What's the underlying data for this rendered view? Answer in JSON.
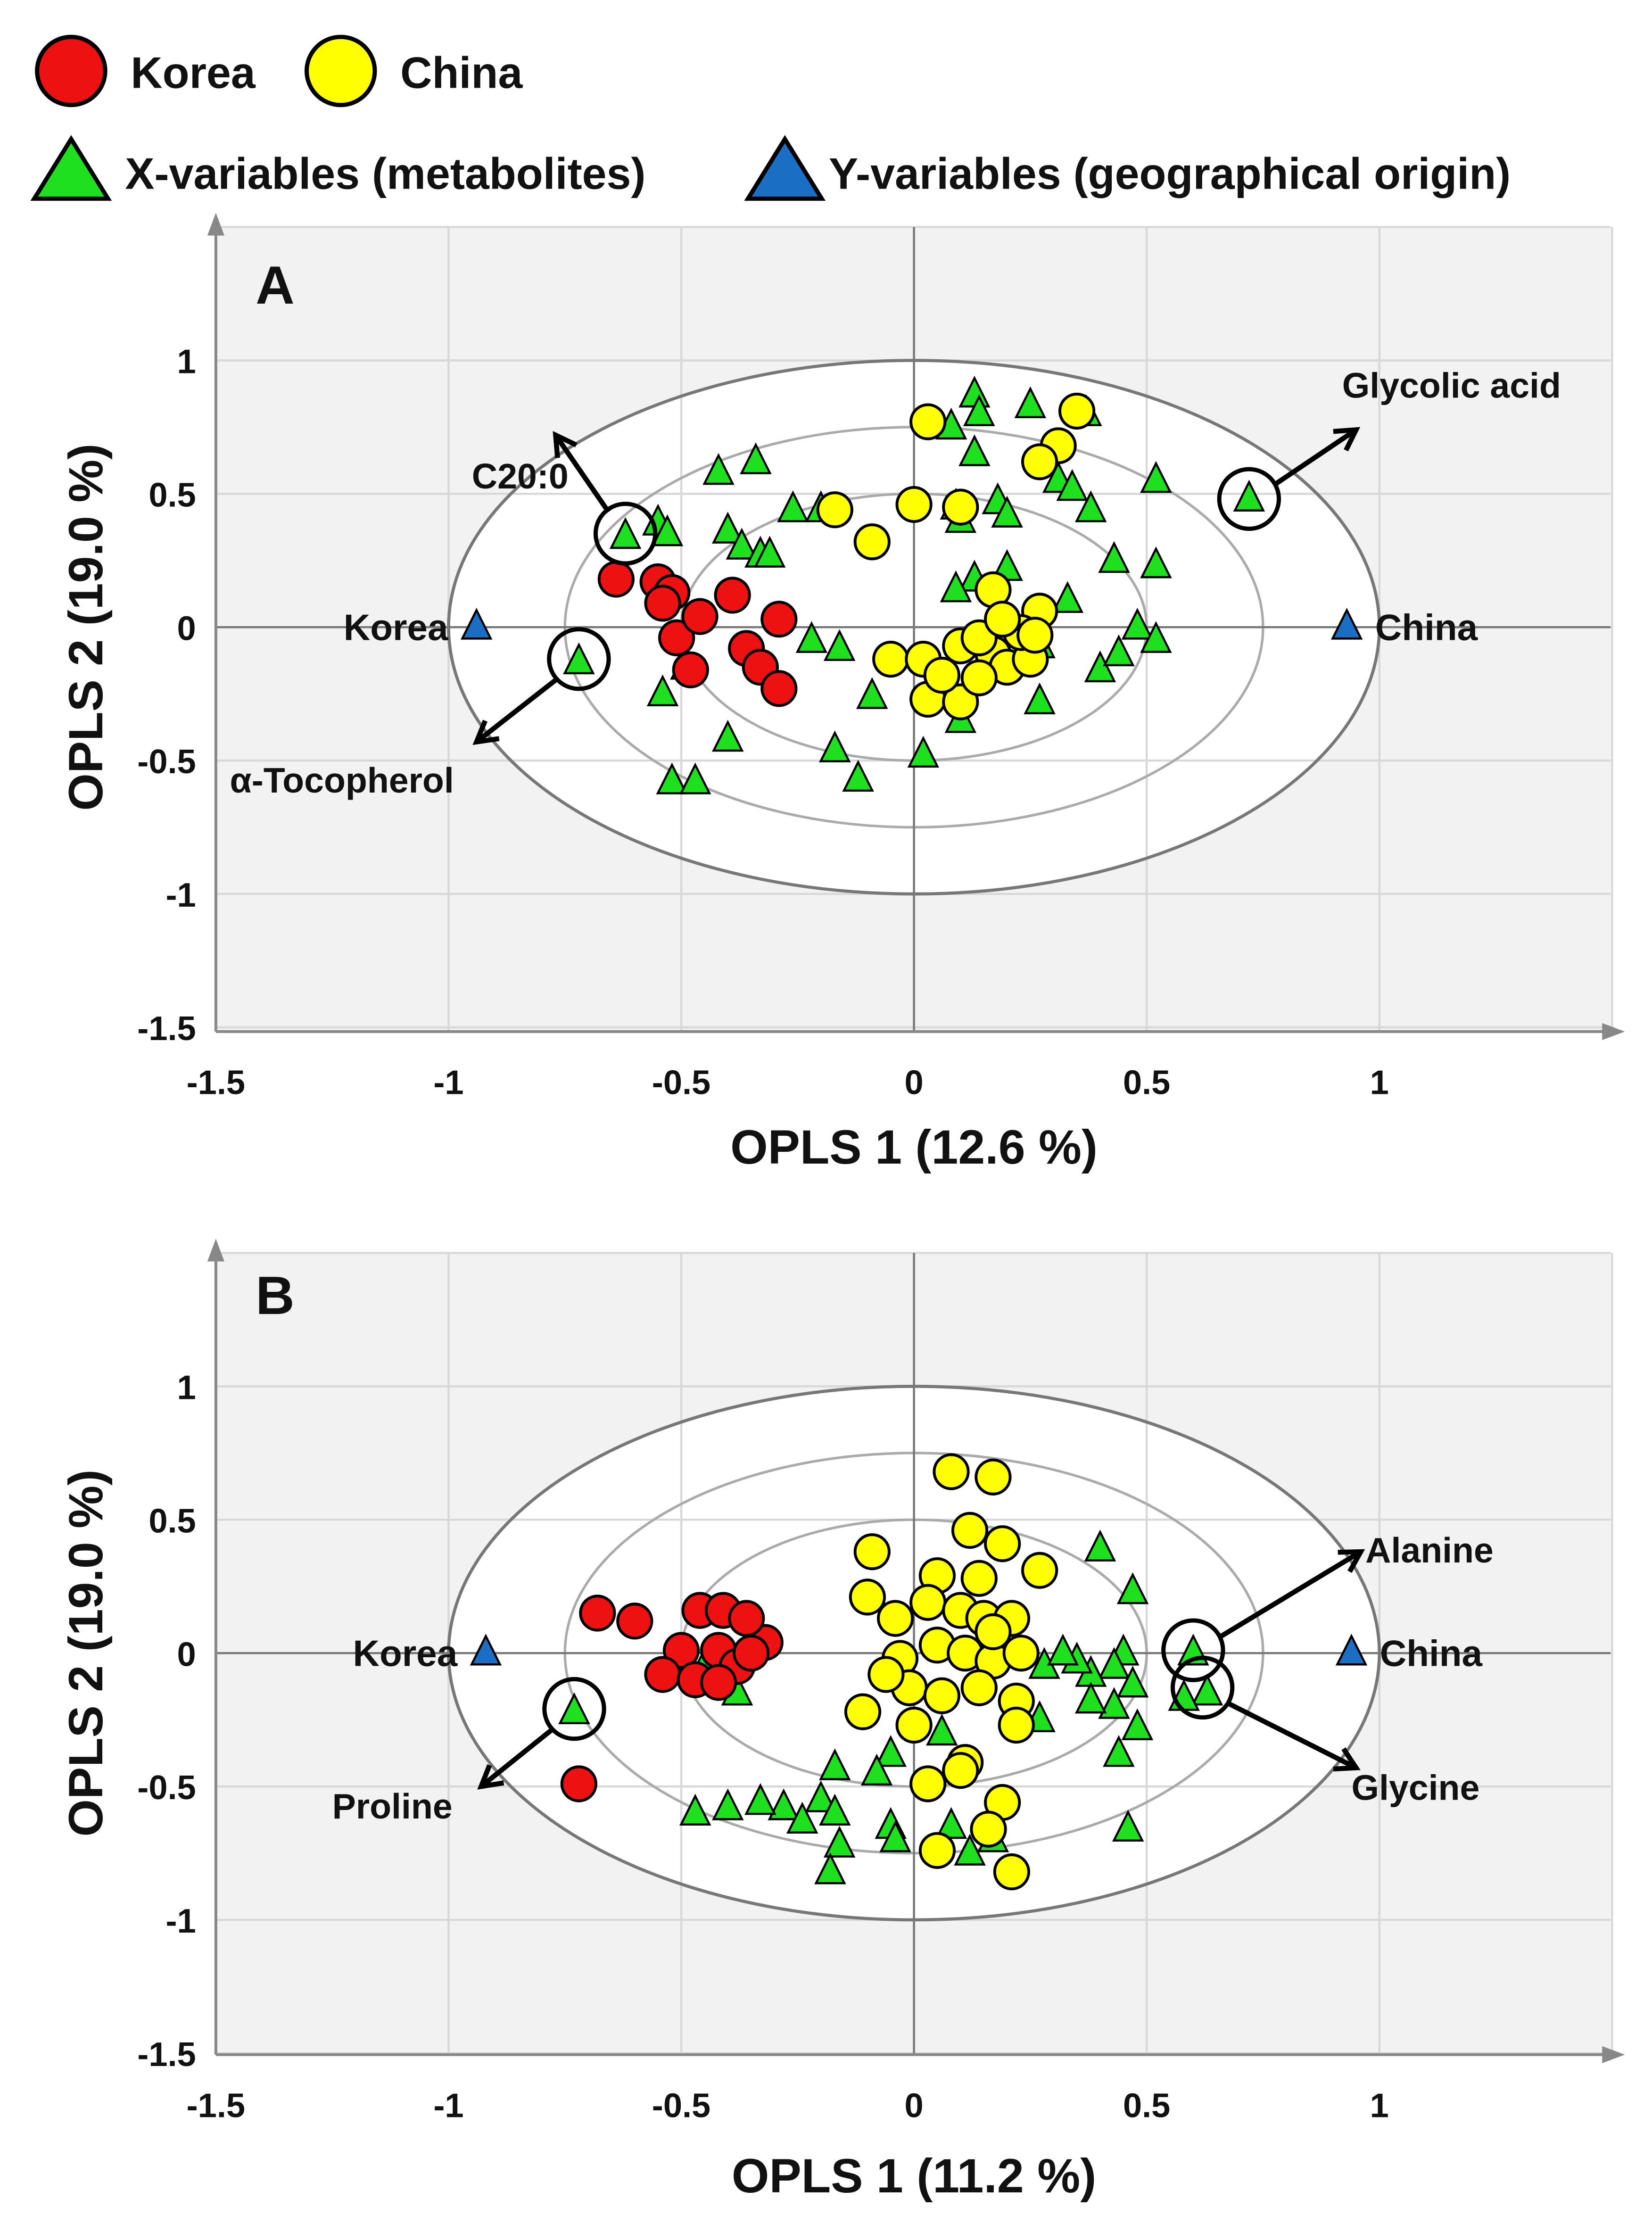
{
  "legend": {
    "korea": "Korea",
    "china": "China",
    "x_variables": "X-variables (metabolites)",
    "y_variables": "Y-variables (geographical origin)"
  },
  "colors": {
    "korea": "#ee1111",
    "china": "#ffff00",
    "x_var": "#1ee01e",
    "y_var": "#1a6fc4",
    "bg": "#f2f2f2",
    "grid": "#d8d8d8"
  },
  "chart_data": [
    {
      "type": "scatter",
      "panel": "A",
      "xlabel": "OPLS 1 (12.6 %)",
      "ylabel": "OPLS 2 (19.0 %)",
      "xlim": [
        -1.5,
        1.5
      ],
      "ylim": [
        -1.5,
        1.5
      ],
      "xticks": [
        "-1.5",
        "-1",
        "-0.5",
        "0",
        "0.5",
        "1"
      ],
      "yticks": [
        "1",
        "0.5",
        "0",
        "-0.5",
        "-1",
        "-1.5"
      ],
      "ellipse_radii": [
        1,
        0.75,
        0.5
      ],
      "series": [
        {
          "name": "Korea",
          "marker": "circle",
          "points": [
            [
              -0.64,
              0.18
            ],
            [
              -0.55,
              0.17
            ],
            [
              -0.52,
              0.13
            ],
            [
              -0.54,
              0.09
            ],
            [
              -0.51,
              -0.04
            ],
            [
              -0.46,
              0.04
            ],
            [
              -0.48,
              -0.16
            ],
            [
              -0.39,
              0.12
            ],
            [
              -0.36,
              -0.08
            ],
            [
              -0.33,
              -0.15
            ],
            [
              -0.29,
              0.03
            ],
            [
              -0.29,
              -0.23
            ]
          ]
        },
        {
          "name": "China",
          "marker": "circle",
          "points": [
            [
              0.03,
              0.77
            ],
            [
              -0.17,
              0.44
            ],
            [
              -0.09,
              0.32
            ],
            [
              0,
              0.46
            ],
            [
              0.1,
              0.45
            ],
            [
              0.35,
              0.81
            ],
            [
              0.31,
              0.68
            ],
            [
              0.27,
              0.62
            ],
            [
              0.17,
              0.14
            ],
            [
              0.27,
              0.06
            ],
            [
              -0.05,
              -0.12
            ],
            [
              0.02,
              -0.12
            ],
            [
              0.03,
              -0.27
            ],
            [
              0.1,
              -0.07
            ],
            [
              0.1,
              -0.28
            ],
            [
              0.17,
              -0.1
            ],
            [
              0.2,
              -0.15
            ],
            [
              0.25,
              -0.12
            ],
            [
              0.23,
              -0.02
            ],
            [
              0.14,
              -0.04
            ],
            [
              0.06,
              -0.18
            ],
            [
              0.26,
              -0.03
            ],
            [
              0.19,
              0.03
            ],
            [
              0.14,
              -0.19
            ]
          ]
        },
        {
          "name": "X-variables (metabolites)",
          "marker": "triangle",
          "points": [
            [
              0.13,
              0.87
            ],
            [
              0.25,
              0.83
            ],
            [
              0.14,
              0.8
            ],
            [
              0.08,
              0.75
            ],
            [
              0.37,
              0.8
            ],
            [
              0.13,
              0.65
            ],
            [
              0.31,
              0.55
            ],
            [
              0.34,
              0.52
            ],
            [
              0.52,
              0.55
            ],
            [
              0.38,
              0.44
            ],
            [
              0.18,
              0.47
            ],
            [
              0.2,
              0.42
            ],
            [
              0.1,
              0.4
            ],
            [
              0.09,
              0.45
            ],
            [
              -0.42,
              0.58
            ],
            [
              -0.34,
              0.62
            ],
            [
              -0.26,
              0.44
            ],
            [
              -0.2,
              0.44
            ],
            [
              -0.55,
              0.39
            ],
            [
              -0.53,
              0.35
            ],
            [
              -0.4,
              0.36
            ],
            [
              -0.37,
              0.3
            ],
            [
              -0.33,
              0.27
            ],
            [
              -0.31,
              0.27
            ],
            [
              -0.62,
              0.34
            ],
            [
              0.13,
              0.18
            ],
            [
              0.09,
              0.14
            ],
            [
              0.2,
              0.22
            ],
            [
              0.33,
              0.1
            ],
            [
              0.43,
              0.25
            ],
            [
              0.52,
              0.23
            ],
            [
              0.48,
              0
            ],
            [
              0.52,
              -0.05
            ],
            [
              0.4,
              -0.16
            ],
            [
              0.44,
              -0.1
            ],
            [
              0.27,
              -0.28
            ],
            [
              0.1,
              -0.35
            ],
            [
              0.02,
              -0.48
            ],
            [
              -0.12,
              -0.57
            ],
            [
              -0.17,
              -0.46
            ],
            [
              -0.4,
              -0.42
            ],
            [
              -0.52,
              -0.58
            ],
            [
              -0.47,
              -0.58
            ],
            [
              -0.54,
              -0.25
            ],
            [
              -0.49,
              -0.15
            ],
            [
              -0.22,
              -0.05
            ],
            [
              -0.16,
              -0.08
            ],
            [
              -0.09,
              -0.26
            ],
            [
              -0.72,
              -0.13
            ],
            [
              0.72,
              0.48
            ],
            [
              0.27,
              -0.07
            ]
          ]
        },
        {
          "name": "Y-variables (geographical origin)",
          "marker": "triangle",
          "points": [
            [
              -0.94,
              0
            ],
            [
              0.93,
              0
            ]
          ],
          "labels": [
            "Korea",
            "China"
          ]
        }
      ],
      "annotations": [
        {
          "text": "C20:0",
          "at": [
            -0.62,
            0.34
          ],
          "arrow_to": [
            -0.77,
            0.72
          ],
          "label_at": [
            -0.95,
            0.52
          ]
        },
        {
          "text": "α-Tocopherol",
          "at": [
            -0.72,
            -0.13
          ],
          "arrow_to": [
            -0.94,
            -0.43
          ],
          "label_at": [
            -1.47,
            -0.62
          ]
        },
        {
          "text": "Glycolic acid",
          "at": [
            0.72,
            0.47
          ],
          "arrow_to": [
            0.95,
            0.74
          ],
          "label_at": [
            0.92,
            0.86
          ]
        }
      ]
    },
    {
      "type": "scatter",
      "panel": "B",
      "xlabel": "OPLS 1 (11.2 %)",
      "ylabel": "OPLS 2 (19.0 %)",
      "xlim": [
        -1.5,
        1.5
      ],
      "ylim": [
        -1.5,
        1.5
      ],
      "xticks": [
        "-1.5",
        "-1",
        "-0.5",
        "0",
        "0.5",
        "1"
      ],
      "yticks": [
        "1",
        "0.5",
        "0",
        "-0.5",
        "-1",
        "-1.5"
      ],
      "ellipse_radii": [
        1,
        0.75,
        0.5
      ],
      "series": [
        {
          "name": "Korea",
          "marker": "circle",
          "points": [
            [
              -0.68,
              0.15
            ],
            [
              -0.6,
              0.12
            ],
            [
              -0.46,
              0.16
            ],
            [
              -0.41,
              0.16
            ],
            [
              -0.32,
              0.04
            ],
            [
              -0.36,
              0.13
            ],
            [
              -0.42,
              0.01
            ],
            [
              -0.5,
              0.01
            ],
            [
              -0.54,
              -0.08
            ],
            [
              -0.47,
              -0.1
            ],
            [
              -0.38,
              -0.05
            ],
            [
              -0.35,
              0
            ],
            [
              -0.42,
              -0.11
            ],
            [
              -0.72,
              -0.49
            ]
          ]
        },
        {
          "name": "China",
          "marker": "circle",
          "points": [
            [
              0.08,
              0.68
            ],
            [
              0.17,
              0.66
            ],
            [
              -0.09,
              0.38
            ],
            [
              0.19,
              0.41
            ],
            [
              0.12,
              0.46
            ],
            [
              0.27,
              0.31
            ],
            [
              -0.1,
              0.21
            ],
            [
              0.05,
              0.29
            ],
            [
              0.14,
              0.28
            ],
            [
              -0.04,
              0.13
            ],
            [
              0.03,
              0.19
            ],
            [
              0.1,
              0.16
            ],
            [
              0.15,
              0.13
            ],
            [
              0.21,
              0.13
            ],
            [
              -0.03,
              -0.02
            ],
            [
              0.05,
              0.03
            ],
            [
              0.11,
              0
            ],
            [
              0.17,
              -0.03
            ],
            [
              0.23,
              0
            ],
            [
              -0.01,
              -0.13
            ],
            [
              0.06,
              -0.16
            ],
            [
              0.14,
              -0.13
            ],
            [
              0.22,
              -0.18
            ],
            [
              -0.11,
              -0.22
            ],
            [
              0,
              -0.27
            ],
            [
              0.22,
              -0.27
            ],
            [
              0.11,
              -0.41
            ],
            [
              0.03,
              -0.49
            ],
            [
              0.1,
              -0.44
            ],
            [
              0.19,
              -0.56
            ],
            [
              0.16,
              -0.66
            ],
            [
              0.05,
              -0.74
            ],
            [
              0.21,
              -0.82
            ],
            [
              -0.06,
              -0.08
            ],
            [
              0.17,
              0.08
            ]
          ]
        },
        {
          "name": "X-variables (metabolites)",
          "marker": "triangle",
          "points": [
            [
              0.4,
              0.39
            ],
            [
              0.47,
              0.23
            ],
            [
              0.6,
              0
            ],
            [
              0.63,
              -0.15
            ],
            [
              0.58,
              -0.17
            ],
            [
              0.45,
              0
            ],
            [
              0.43,
              -0.05
            ],
            [
              0.47,
              -0.12
            ],
            [
              0.38,
              -0.08
            ],
            [
              0.35,
              -0.03
            ],
            [
              0.43,
              -0.2
            ],
            [
              0.48,
              -0.28
            ],
            [
              0.44,
              -0.38
            ],
            [
              0.46,
              -0.66
            ],
            [
              0.38,
              -0.18
            ],
            [
              0.27,
              -0.25
            ],
            [
              0.28,
              -0.05
            ],
            [
              0.32,
              0
            ],
            [
              0.18,
              0.02
            ],
            [
              0.06,
              -0.3
            ],
            [
              -0.05,
              -0.38
            ],
            [
              -0.08,
              -0.45
            ],
            [
              -0.17,
              -0.43
            ],
            [
              -0.2,
              -0.55
            ],
            [
              -0.28,
              -0.58
            ],
            [
              -0.33,
              -0.56
            ],
            [
              -0.4,
              -0.58
            ],
            [
              -0.47,
              -0.6
            ],
            [
              -0.24,
              -0.63
            ],
            [
              -0.17,
              -0.6
            ],
            [
              -0.16,
              -0.72
            ],
            [
              -0.18,
              -0.82
            ],
            [
              -0.05,
              -0.65
            ],
            [
              -0.04,
              -0.7
            ],
            [
              0.08,
              -0.65
            ],
            [
              0.12,
              -0.75
            ],
            [
              0.17,
              -0.7
            ],
            [
              -0.38,
              -0.15
            ],
            [
              -0.45,
              -0.05
            ],
            [
              -0.73,
              -0.22
            ]
          ]
        },
        {
          "name": "Y-variables (geographical origin)",
          "marker": "triangle",
          "points": [
            [
              -0.92,
              0
            ],
            [
              0.94,
              0
            ]
          ],
          "labels": [
            "Korea",
            "China"
          ]
        }
      ],
      "annotations": [
        {
          "text": "Proline",
          "at": [
            -0.73,
            -0.22
          ],
          "arrow_to": [
            -0.93,
            -0.5
          ],
          "label_at": [
            -1.25,
            -0.62
          ]
        },
        {
          "text": "Alanine",
          "at": [
            0.6,
            0.0
          ],
          "arrow_to": [
            0.96,
            0.38
          ],
          "label_at": [
            0.97,
            0.34
          ]
        },
        {
          "text": "Glycine",
          "at": [
            0.62,
            -0.14
          ],
          "arrow_to": [
            0.95,
            -0.43
          ],
          "label_at": [
            0.94,
            -0.55
          ]
        }
      ]
    }
  ]
}
